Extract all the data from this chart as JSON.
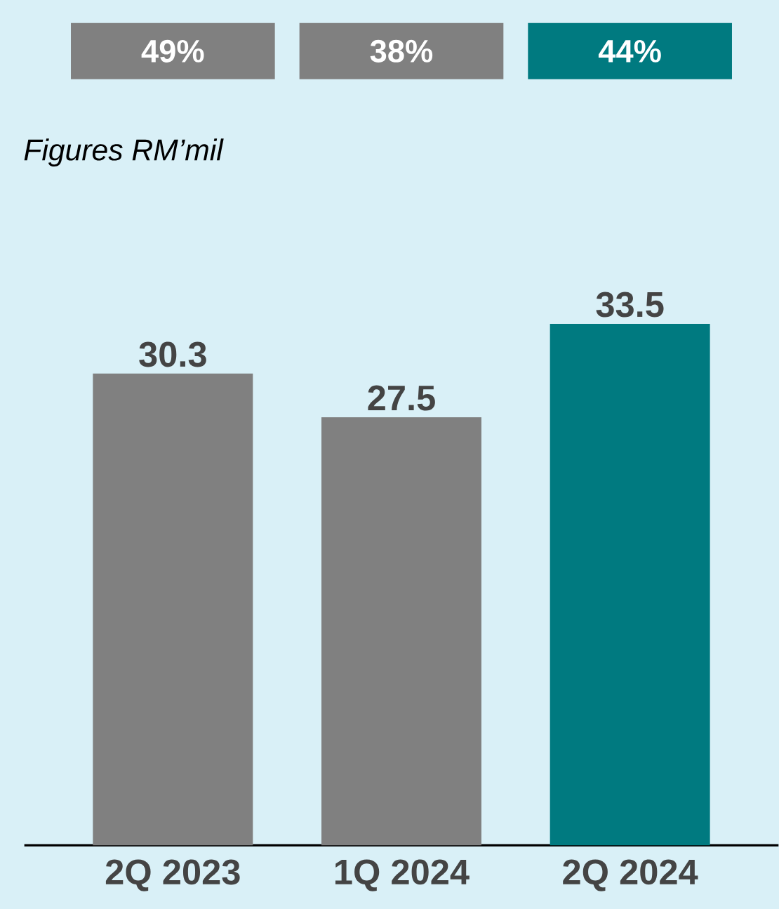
{
  "chart_data": {
    "type": "bar",
    "subtitle": "*Figures RM’mil*",
    "categories": [
      "2Q 2023",
      "1Q 2024",
      "2Q 2024"
    ],
    "values": [
      30.3,
      27.5,
      33.5
    ],
    "colors": [
      "#808080",
      "#808080",
      "#007a80"
    ],
    "data_labels": true,
    "annotations": [
      "49%",
      "38%",
      "44%"
    ]
  }
}
